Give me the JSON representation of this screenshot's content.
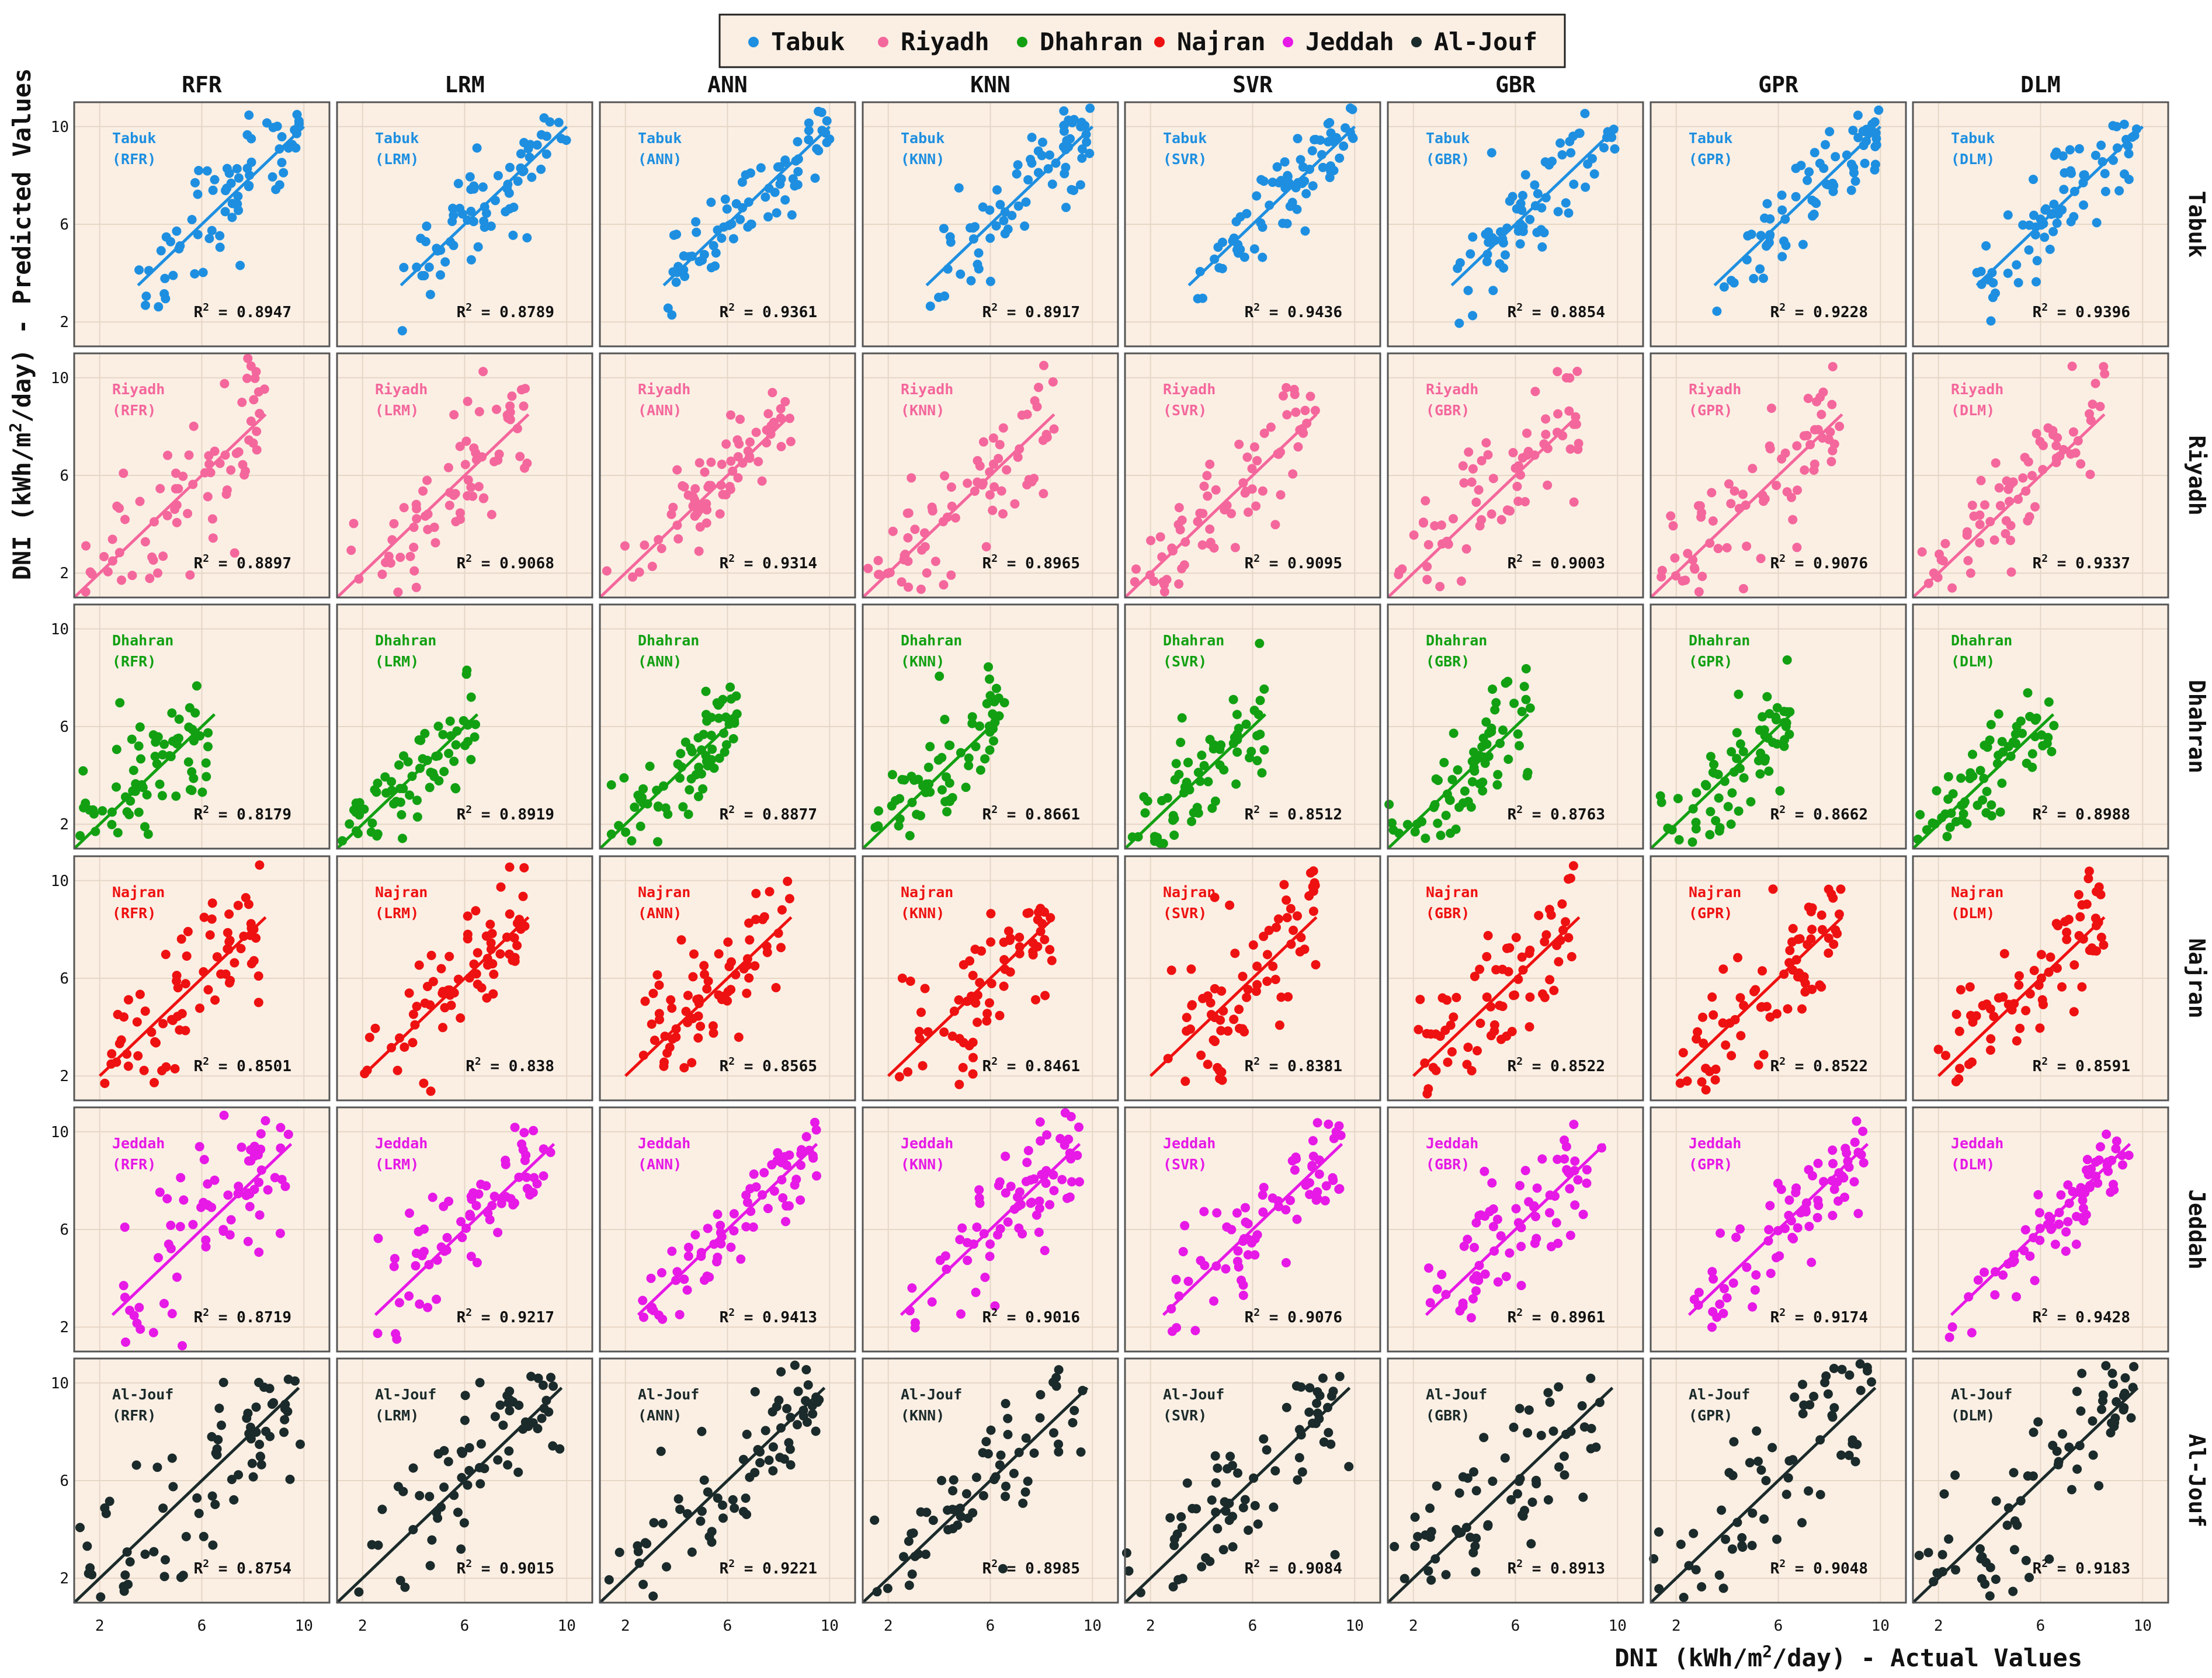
{
  "chart_data": {
    "type": "scatter",
    "facet_layout": "grid: rows = station, columns = model",
    "models": [
      "RFR",
      "LRM",
      "ANN",
      "KNN",
      "SVR",
      "GBR",
      "GPR",
      "DLM"
    ],
    "stations": [
      "Tabuk",
      "Riyadh",
      "Dhahran",
      "Najran",
      "Jeddah",
      "Al-Jouf"
    ],
    "colors": {
      "Tabuk": "#1e8fe0",
      "Riyadh": "#f4679c",
      "Dhahran": "#12a012",
      "Najran": "#ee1111",
      "Jeddah": "#e619e6",
      "Al-Jouf": "#1b2a2a"
    },
    "panel_background": "#fbefe4",
    "legend": {
      "placement": "top-center",
      "entries": [
        "Tabuk",
        "Riyadh",
        "Dhahran",
        "Najran",
        "Jeddah",
        "Al-Jouf"
      ]
    },
    "xlabel_prefix": "DNI (kWh/m",
    "xlabel_sup": "2",
    "xlabel_suffix": "/day) - Actual Values",
    "ylabel_prefix": "DNI (kWh/m",
    "ylabel_sup": "2",
    "ylabel_suffix": "/day) - Predicted Values",
    "xlim": [
      1,
      11
    ],
    "ylim": [
      1,
      11
    ],
    "xticks": [
      2,
      6,
      10
    ],
    "yticks": [
      2,
      6,
      10
    ],
    "grid": true,
    "r2_label_prefix": "R",
    "r2_label_sup": "2",
    "r2_label_suffix": " = ",
    "ranges": {
      "Tabuk": [
        3.5,
        10
      ],
      "Riyadh": [
        1.0,
        8.5
      ],
      "Dhahran": [
        1.0,
        6.5
      ],
      "Najran": [
        2.0,
        8.5
      ],
      "Jeddah": [
        2.5,
        9.5
      ],
      "Al-Jouf": [
        1.0,
        9.8
      ]
    },
    "points_per_panel": 75,
    "r2": {
      "Tabuk": [
        "0.8947",
        "0.8789",
        "0.9361",
        "0.8917",
        "0.9436",
        "0.8854",
        "0.9228",
        "0.9396"
      ],
      "Riyadh": [
        "0.8897",
        "0.9068",
        "0.9314",
        "0.8965",
        "0.9095",
        "0.9003",
        "0.9076",
        "0.9337"
      ],
      "Dhahran": [
        "0.8179",
        "0.8919",
        "0.8877",
        "0.8661",
        "0.8512",
        "0.8763",
        "0.8662",
        "0.8988"
      ],
      "Najran": [
        "0.8501",
        "0.838",
        "0.8565",
        "0.8461",
        "0.8381",
        "0.8522",
        "0.8522",
        "0.8591"
      ],
      "Jeddah": [
        "0.8719",
        "0.9217",
        "0.9413",
        "0.9016",
        "0.9076",
        "0.8961",
        "0.9174",
        "0.9428"
      ],
      "Al-Jouf": [
        "0.8754",
        "0.9015",
        "0.9221",
        "0.8985",
        "0.9084",
        "0.8913",
        "0.9048",
        "0.9183"
      ]
    }
  }
}
